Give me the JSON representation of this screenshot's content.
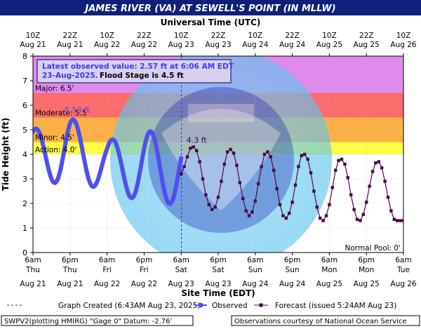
{
  "chart_data": {
    "type": "line",
    "title": "JAMES RIVER (VA) AT SEWELL'S POINT (IN MLLW)",
    "top_axis_label": "Universal Time (UTC)",
    "bottom_axis_label": "Site Time (EDT)",
    "ylabel": "Tide Height (ft)",
    "ylim": [
      0,
      8
    ],
    "y_ticks": [
      "0",
      "1",
      "2",
      "3",
      "4",
      "5",
      "6",
      "7",
      "8"
    ],
    "xlim": [
      0,
      120
    ],
    "grid": true,
    "x_ticks": [
      {
        "x": 0,
        "bottom1": "6am",
        "bottom2": "Thu",
        "bottom3": "Aug 21",
        "top1": "10Z",
        "top2": "Aug 21"
      },
      {
        "x": 12,
        "bottom1": "6pm",
        "bottom2": "Thu",
        "bottom3": "Aug 21",
        "top1": "22Z",
        "top2": "Aug 21"
      },
      {
        "x": 24,
        "bottom1": "6am",
        "bottom2": "Fri",
        "bottom3": "Aug 22",
        "top1": "10Z",
        "top2": "Aug 22"
      },
      {
        "x": 36,
        "bottom1": "6pm",
        "bottom2": "Fri",
        "bottom3": "Aug 22",
        "top1": "22Z",
        "top2": "Aug 22"
      },
      {
        "x": 48,
        "bottom1": "6am",
        "bottom2": "Sat",
        "bottom3": "Aug 23",
        "top1": "10Z",
        "top2": "Aug 23"
      },
      {
        "x": 60,
        "bottom1": "6pm",
        "bottom2": "Sat",
        "bottom3": "Aug 23",
        "top1": "22Z",
        "top2": "Aug 23"
      },
      {
        "x": 72,
        "bottom1": "6am",
        "bottom2": "Sun",
        "bottom3": "Aug 24",
        "top1": "10Z",
        "top2": "Aug 24"
      },
      {
        "x": 84,
        "bottom1": "6pm",
        "bottom2": "Sun",
        "bottom3": "Aug 24",
        "top1": "22Z",
        "top2": "Aug 24"
      },
      {
        "x": 96,
        "bottom1": "6am",
        "bottom2": "Mon",
        "bottom3": "Aug 25",
        "top1": "10Z",
        "top2": "Aug 25"
      },
      {
        "x": 108,
        "bottom1": "6pm",
        "bottom2": "Mon",
        "bottom3": "Aug 25",
        "top1": "22Z",
        "top2": "Aug 25"
      },
      {
        "x": 120,
        "bottom1": "6am",
        "bottom2": "Tue",
        "bottom3": "Aug 26",
        "top1": "10Z",
        "top2": "Aug 26"
      }
    ],
    "flood_bands": [
      {
        "label": "Major: 6.5'",
        "from": 6.5,
        "to": 8.0,
        "color": "#e08af0"
      },
      {
        "label": "Moderate: 5.5'",
        "from": 5.5,
        "to": 6.5,
        "color": "#fb6c6c"
      },
      {
        "label": "Minor: 4.5'",
        "from": 4.5,
        "to": 5.5,
        "color": "#fdb047"
      },
      {
        "label": "Action: 4.0'",
        "from": 4.0,
        "to": 4.5,
        "color": "#fdfc46"
      }
    ],
    "normal_pool_label": "Normal Pool: 0'",
    "info_box": {
      "line1": "Latest observed value: 2.57 ft at 6:06 AM EDT",
      "line2a": "23-Aug-2025.",
      "line2b": "Flood Stage is 4.5 ft"
    },
    "graph_created_x": 48.1,
    "annotations": [
      {
        "text": "5.53 ft",
        "x": 14.3,
        "y": 5.53,
        "color": "#4a4aee"
      },
      {
        "text": "4.3 ft",
        "x": 53.0,
        "y": 4.3,
        "color": "#3a0a3a"
      }
    ],
    "series": [
      {
        "name": "Observed",
        "color": "#4f4ff0",
        "wave": {
          "start": 0,
          "end": 48.1,
          "mean": 3.95,
          "amplitude": 1.25,
          "period": 12.42,
          "peak_at": 0.8,
          "amp_curve": [
            [
              0,
              1.05
            ],
            [
              10,
              1.35
            ],
            [
              24,
              1.0
            ],
            [
              36,
              1.45
            ],
            [
              48,
              1.45
            ]
          ],
          "mean_curve": [
            [
              0,
              3.95
            ],
            [
              12,
              4.2
            ],
            [
              24,
              3.55
            ],
            [
              36,
              3.5
            ],
            [
              48,
              3.4
            ]
          ]
        }
      },
      {
        "name": "Forecast",
        "color": "#4a0a4a",
        "x": [
          48,
          49,
          50,
          51,
          52,
          53,
          54,
          55,
          56,
          57,
          58,
          59,
          60,
          61,
          62,
          63,
          64,
          65,
          66,
          67,
          68,
          69,
          70,
          71,
          72,
          73,
          74,
          75,
          76,
          77,
          78,
          79,
          80,
          81,
          82,
          83,
          84,
          85,
          86,
          87,
          88,
          89,
          90,
          91,
          92,
          93,
          94,
          95,
          96,
          97,
          98,
          99,
          100,
          101,
          102,
          103,
          104,
          105,
          106,
          107,
          108,
          109,
          110,
          111,
          112,
          113,
          114,
          115,
          116,
          117,
          118,
          119,
          120
        ],
        "y": [
          3.2,
          3.5,
          3.9,
          4.25,
          4.3,
          4.15,
          3.7,
          3.0,
          2.35,
          1.95,
          1.75,
          1.85,
          2.25,
          2.9,
          3.6,
          4.1,
          4.2,
          4.05,
          3.55,
          2.85,
          2.2,
          1.7,
          1.5,
          1.65,
          2.1,
          2.8,
          3.5,
          4.0,
          4.1,
          3.9,
          3.35,
          2.6,
          1.95,
          1.5,
          1.4,
          1.6,
          2.05,
          2.75,
          3.5,
          3.95,
          4.0,
          3.8,
          3.25,
          2.5,
          1.85,
          1.4,
          1.3,
          1.5,
          1.95,
          2.65,
          3.35,
          3.75,
          3.8,
          3.6,
          3.05,
          2.35,
          1.75,
          1.35,
          1.3,
          1.55,
          2.05,
          2.7,
          3.3,
          3.65,
          3.7,
          3.45,
          2.9,
          2.25,
          1.7,
          1.35,
          1.3,
          1.3,
          1.3
        ]
      }
    ],
    "legend": {
      "graph_created": "Graph Created (6:43AM Aug 23, 2025)",
      "observed": "Observed",
      "forecast": "Forecast (issued 5:24AM Aug 23)"
    },
    "footer": {
      "left": "SWPV2(plotting HMIRG) \"Gage 0\" Datum: -2.76'",
      "right": "Observations courtesy of National Ocean Service"
    }
  }
}
